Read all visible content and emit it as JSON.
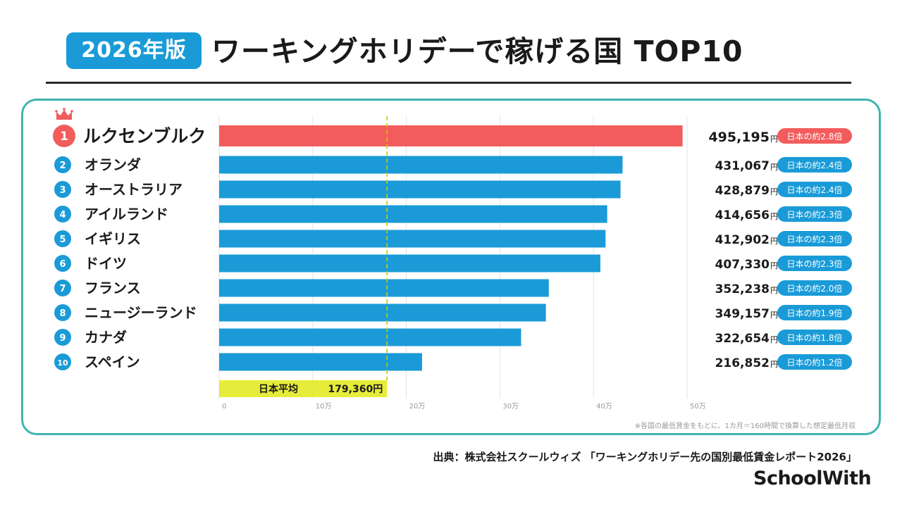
{
  "header": {
    "badge": "2026年版",
    "title": "ワーキングホリデーで稼げる国 TOP10"
  },
  "colors": {
    "primary_blue": "#1a9bd7",
    "top_red": "#f25c5c",
    "japan_yellow": "#e6ec3a",
    "panel_border": "#3fb5b1",
    "grid": "#e3e3e3"
  },
  "chart_data": {
    "type": "bar",
    "orientation": "horizontal",
    "ranks": [
      "1",
      "2",
      "3",
      "4",
      "5",
      "6",
      "7",
      "8",
      "9",
      "10"
    ],
    "categories": [
      "ルクセンブルク",
      "オランダ",
      "オーストラリア",
      "アイルランド",
      "イギリス",
      "ドイツ",
      "フランス",
      "ニュージーランド",
      "カナダ",
      "スペイン"
    ],
    "values": [
      495195,
      431067,
      428879,
      414656,
      412902,
      407330,
      352238,
      349157,
      322654,
      216852
    ],
    "value_labels": [
      "495,195",
      "431,067",
      "428,879",
      "414,656",
      "412,902",
      "407,330",
      "352,238",
      "349,157",
      "322,654",
      "216,852"
    ],
    "unit": "円",
    "ratio_labels": [
      "日本の約2.8倍",
      "日本の約2.4倍",
      "日本の約2.4倍",
      "日本の約2.3倍",
      "日本の約2.3倍",
      "日本の約2.3倍",
      "日本の約2.0倍",
      "日本の約1.9倍",
      "日本の約1.8倍",
      "日本の約1.2倍"
    ],
    "reference": {
      "label": "日本平均",
      "value": 179360,
      "value_label": "179,360円"
    },
    "xlim": [
      0,
      500000
    ],
    "xticks": [
      0,
      100000,
      200000,
      300000,
      400000,
      500000
    ],
    "xtick_labels": [
      "0",
      "10万",
      "20万",
      "30万",
      "40万",
      "50万"
    ],
    "grid": true,
    "highlight_index": 0
  },
  "footnote": "※各国の最低賃金をもとに、1カ月＝160時間で換算した想定最低月収",
  "source": "出典：株式会社スクールウィズ 「ワーキングホリデー先の国別最低賃金レポート2026」",
  "logo": "SchoolWith",
  "icons": {
    "top_rank": "crown-icon"
  }
}
